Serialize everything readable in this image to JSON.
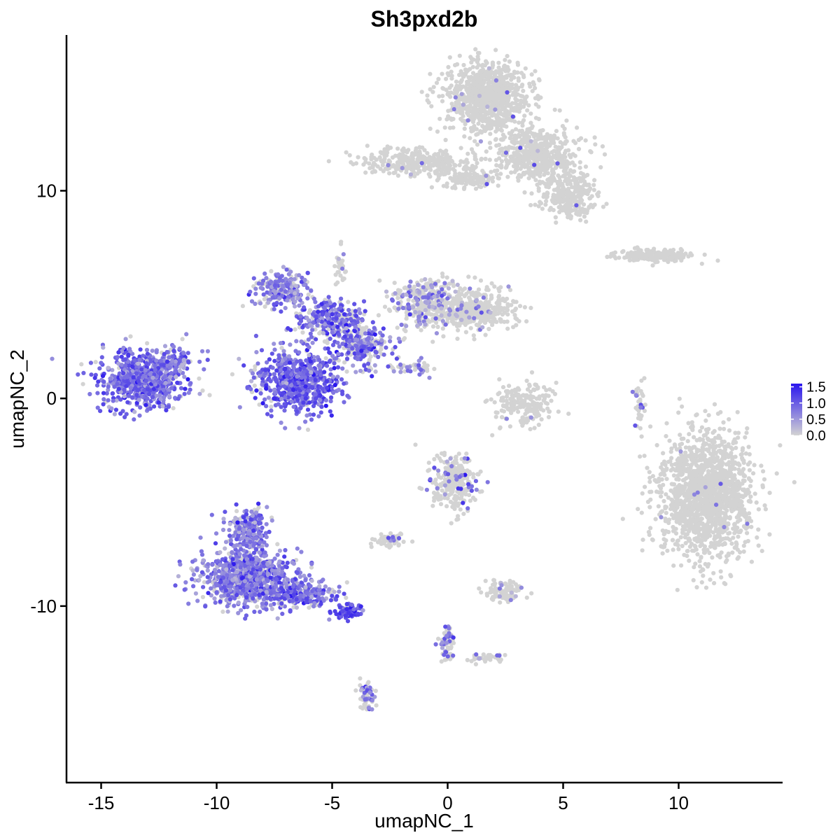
{
  "chart_data": {
    "type": "scatter",
    "title": "Sh3pxd2b",
    "xlabel": "umapNC_1",
    "ylabel": "umapNC_2",
    "xlim": [
      -16.5,
      14.5
    ],
    "ylim": [
      -18.5,
      17.5
    ],
    "x_ticks": [
      -15,
      -10,
      -5,
      0,
      5,
      10
    ],
    "x_tick_labels": [
      "-15",
      "-10",
      "-5",
      "0",
      "5",
      "10"
    ],
    "y_ticks": [
      -10,
      0,
      10
    ],
    "y_tick_labels": [
      "-10",
      "0",
      "10"
    ],
    "grid": false,
    "legend_placement": "right",
    "color_scale": {
      "low_color": "#d3d3d3",
      "high_color": "#2a16ee",
      "min": 0,
      "max": 1.6,
      "ticks": [
        1.5,
        1.0,
        0.5,
        0.0
      ],
      "tick_labels": [
        "1.5",
        "1.0",
        "0.5",
        "0.0"
      ]
    },
    "clusters": [
      {
        "cx": -13.2,
        "cy": 0.9,
        "rx": 1.7,
        "ry": 1.3,
        "n": 700,
        "expr_mean": 0.9,
        "expr_frac": 0.9
      },
      {
        "cx": -11.9,
        "cy": 1.8,
        "rx": 0.9,
        "ry": 0.6,
        "n": 90,
        "expr_mean": 0.8,
        "expr_frac": 0.85
      },
      {
        "cx": -6.5,
        "cy": 0.8,
        "rx": 1.6,
        "ry": 1.4,
        "n": 650,
        "expr_mean": 0.95,
        "expr_frac": 0.88
      },
      {
        "cx": -7.2,
        "cy": 5.2,
        "rx": 1.0,
        "ry": 0.8,
        "n": 220,
        "expr_mean": 0.75,
        "expr_frac": 0.75
      },
      {
        "cx": -5.2,
        "cy": 3.8,
        "rx": 1.2,
        "ry": 0.8,
        "n": 250,
        "expr_mean": 0.9,
        "expr_frac": 0.7
      },
      {
        "cx": -3.8,
        "cy": 2.6,
        "rx": 1.2,
        "ry": 1.0,
        "n": 260,
        "expr_mean": 0.9,
        "expr_frac": 0.6
      },
      {
        "cx": -0.9,
        "cy": 4.5,
        "rx": 1.3,
        "ry": 1.1,
        "n": 320,
        "expr_mean": 0.6,
        "expr_frac": 0.3
      },
      {
        "cx": 1.3,
        "cy": 4.3,
        "rx": 1.6,
        "ry": 0.9,
        "n": 380,
        "expr_mean": 0.5,
        "expr_frac": 0.04
      },
      {
        "cx": -4.7,
        "cy": 6.5,
        "rx": 0.25,
        "ry": 1.0,
        "n": 30,
        "expr_mean": 0.5,
        "expr_frac": 0.1
      },
      {
        "cx": -1.5,
        "cy": 1.4,
        "rx": 0.9,
        "ry": 0.3,
        "n": 40,
        "expr_mean": 0.7,
        "expr_frac": 0.5
      },
      {
        "cx": 1.7,
        "cy": 14.5,
        "rx": 1.6,
        "ry": 1.5,
        "n": 900,
        "expr_mean": 0.6,
        "expr_frac": 0.01
      },
      {
        "cx": 3.9,
        "cy": 11.8,
        "rx": 1.6,
        "ry": 1.2,
        "n": 500,
        "expr_mean": 0.6,
        "expr_frac": 0.01
      },
      {
        "cx": 5.2,
        "cy": 9.8,
        "rx": 1.1,
        "ry": 1.0,
        "n": 300,
        "expr_mean": 0.6,
        "expr_frac": 0.01
      },
      {
        "cx": -1.2,
        "cy": 11.4,
        "rx": 2.2,
        "ry": 0.6,
        "n": 350,
        "expr_mean": 0.6,
        "expr_frac": 0.01
      },
      {
        "cx": 1.0,
        "cy": 10.6,
        "rx": 1.2,
        "ry": 0.4,
        "n": 120,
        "expr_mean": 0.6,
        "expr_frac": 0.01
      },
      {
        "cx": 9.0,
        "cy": 6.9,
        "rx": 1.5,
        "ry": 0.3,
        "n": 200,
        "expr_mean": 0.5,
        "expr_frac": 0.0
      },
      {
        "cx": 11.2,
        "cy": -4.7,
        "rx": 1.8,
        "ry": 2.6,
        "n": 1600,
        "expr_mean": 0.6,
        "expr_frac": 0.006
      },
      {
        "cx": 3.3,
        "cy": -0.3,
        "rx": 1.2,
        "ry": 0.9,
        "n": 200,
        "expr_mean": 0.5,
        "expr_frac": 0.01
      },
      {
        "cx": 8.3,
        "cy": -0.2,
        "rx": 0.25,
        "ry": 1.0,
        "n": 40,
        "expr_mean": 0.8,
        "expr_frac": 0.15
      },
      {
        "cx": -8.7,
        "cy": -8.6,
        "rx": 1.8,
        "ry": 1.3,
        "n": 900,
        "expr_mean": 0.75,
        "expr_frac": 0.85
      },
      {
        "cx": -8.6,
        "cy": -6.3,
        "rx": 0.8,
        "ry": 0.9,
        "n": 200,
        "expr_mean": 0.75,
        "expr_frac": 0.8
      },
      {
        "cx": -6.2,
        "cy": -9.4,
        "rx": 1.3,
        "ry": 0.6,
        "n": 220,
        "expr_mean": 0.9,
        "expr_frac": 0.7
      },
      {
        "cx": -4.3,
        "cy": -10.3,
        "rx": 0.5,
        "ry": 0.3,
        "n": 80,
        "expr_mean": 1.1,
        "expr_frac": 0.85
      },
      {
        "cx": -3.5,
        "cy": -14.3,
        "rx": 0.3,
        "ry": 0.7,
        "n": 60,
        "expr_mean": 0.8,
        "expr_frac": 0.35
      },
      {
        "cx": 0.3,
        "cy": -4.0,
        "rx": 0.9,
        "ry": 1.2,
        "n": 280,
        "expr_mean": 0.8,
        "expr_frac": 0.12
      },
      {
        "cx": -2.5,
        "cy": -6.8,
        "rx": 0.6,
        "ry": 0.3,
        "n": 60,
        "expr_mean": 0.7,
        "expr_frac": 0.2
      },
      {
        "cx": 2.4,
        "cy": -9.3,
        "rx": 0.7,
        "ry": 0.5,
        "n": 90,
        "expr_mean": 0.6,
        "expr_frac": 0.05
      },
      {
        "cx": 0.0,
        "cy": -11.7,
        "rx": 0.3,
        "ry": 0.9,
        "n": 60,
        "expr_mean": 0.8,
        "expr_frac": 0.4
      },
      {
        "cx": 1.8,
        "cy": -12.5,
        "rx": 0.8,
        "ry": 0.2,
        "n": 40,
        "expr_mean": 0.7,
        "expr_frac": 0.2
      }
    ]
  }
}
